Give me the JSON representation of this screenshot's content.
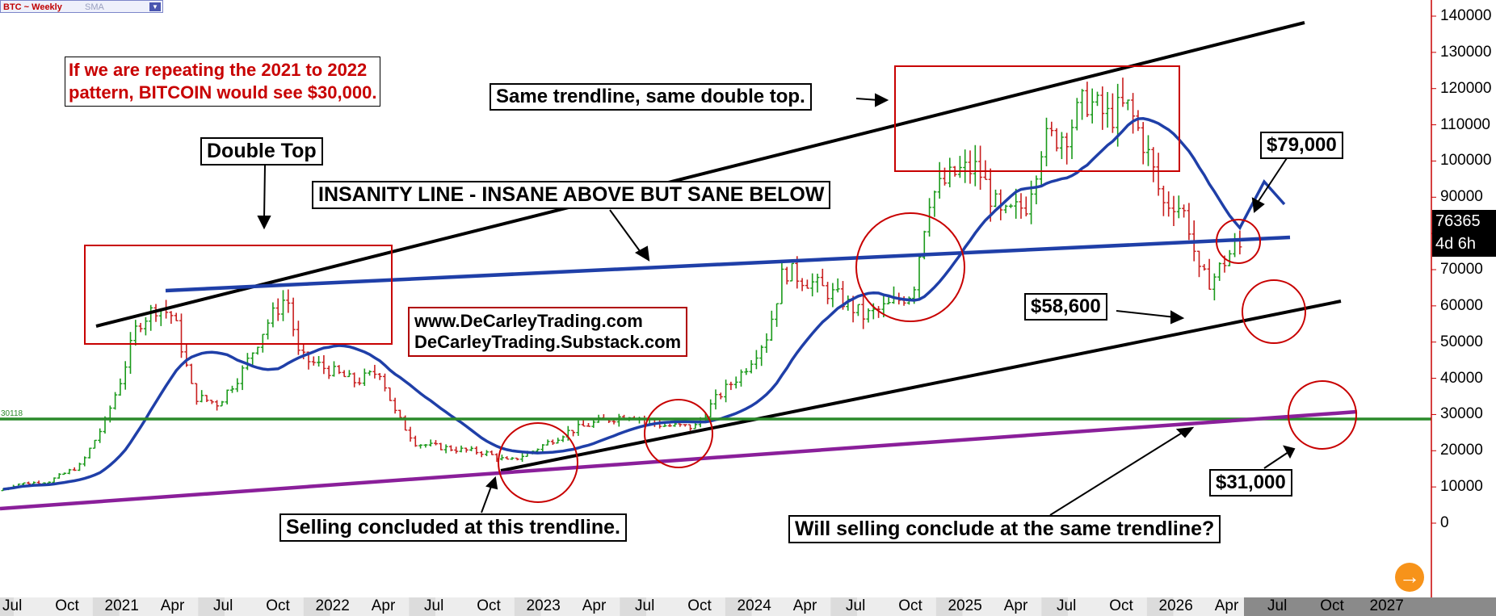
{
  "header": {
    "symbol": "BTC ~ Weekly",
    "indicator": "SMA"
  },
  "chart_data": {
    "type": "bar",
    "title": "",
    "y_ticks": [
      "140000",
      "130000",
      "120000",
      "110000",
      "100000",
      "90000",
      "80000",
      "70000",
      "60000",
      "50000",
      "40000",
      "30000",
      "20000",
      "10000",
      "0"
    ],
    "x_ticks": [
      "Jul",
      "Oct",
      "2021",
      "Apr",
      "Jul",
      "Oct",
      "2022",
      "Apr",
      "Jul",
      "Oct",
      "2023",
      "Apr",
      "Jul",
      "Oct",
      "2024",
      "Apr",
      "Jul",
      "Oct",
      "2025",
      "Apr",
      "Jul",
      "Oct",
      "2026",
      "Apr",
      "Jul",
      "Oct",
      "2027"
    ],
    "ylim": [
      -20000,
      145000
    ],
    "last_price": "76365",
    "countdown": "4d 6h",
    "horizontal_level_label": "30118",
    "horizontal_level": 30118
  },
  "annotations": {
    "repeat_line1": "If we are repeating the 2021 to 2022",
    "repeat_line2": "pattern, BITCOIN would see $30,000.",
    "same_trendline": "Same trendline, same double top.",
    "double_top": "Double Top",
    "insanity": "INSANITY LINE - INSANE ABOVE BUT SANE BELOW",
    "site1": "www.DeCarleyTrading.com",
    "site2": "DeCarleyTrading.Substack.com",
    "p79": "$79,000",
    "p58": "$58,600",
    "p31": "$31,000",
    "selling_concluded": "Selling concluded at this trendline.",
    "will_selling": "Will selling conclude at the same trendline?"
  },
  "colors": {
    "up": "#1a9a1a",
    "down": "#c81e1e",
    "sma": "#1f3fa8",
    "purple": "#8a1f9a",
    "green_line": "#2a8a2a",
    "box": "#c80000"
  }
}
